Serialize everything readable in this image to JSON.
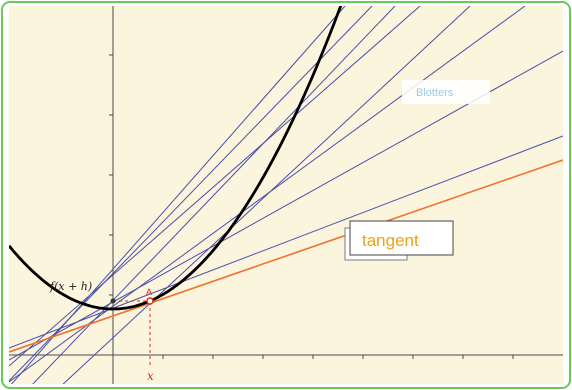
{
  "labels": {
    "function": "f(x + h)",
    "point": "A",
    "x_axis_marker": "x",
    "secant_lines": "Blotters",
    "tangent_line": "tangent"
  },
  "colors": {
    "frame_border": "#66cc55",
    "background": "#fbf5de",
    "axis": "#4a4a4a",
    "curve": "#000000",
    "secant": "#4a4fa8",
    "tangent": "#f07030",
    "point": "#cc3322",
    "blotters_text": "#99ccee",
    "tangent_text": "#f0a010"
  }
}
